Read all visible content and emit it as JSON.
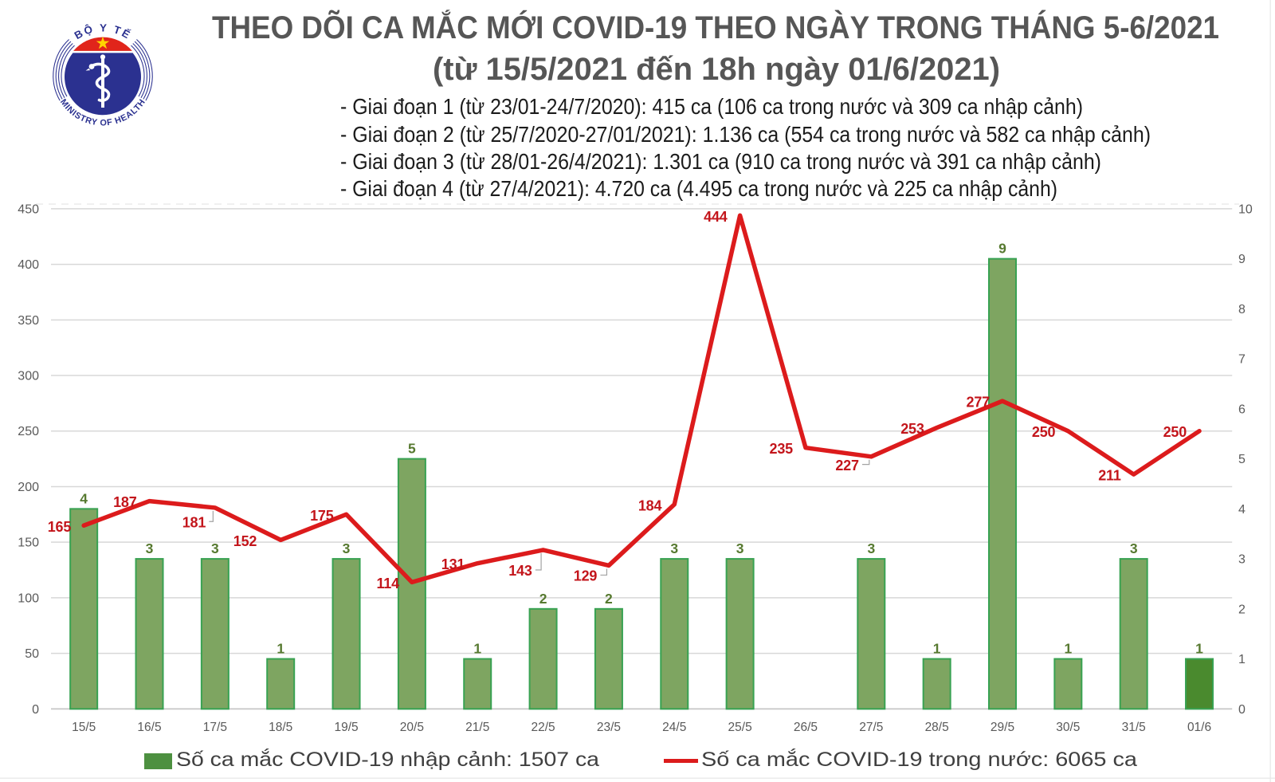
{
  "header": {
    "title_line1": "THEO DÕI CA MẮC MỚI COVID-19 THEO NGÀY TRONG THÁNG 5-6/2021",
    "title_line2": "(từ 15/5/2021 đến 18h ngày 01/6/2021)",
    "bullets": [
      "- Giai đoạn 1 (từ 23/01-24/7/2020): 415 ca (106 ca trong nước và 309 ca nhập cảnh)",
      "- Giai đoạn 2 (từ 25/7/2020-27/01/2021): 1.136 ca (554 ca trong nước và 582 ca nhập cảnh)",
      "- Giai đoạn 3 (từ 28/01-26/4/2021): 1.301 ca (910 ca trong nước và 391 ca nhập cảnh)",
      "- Giai đoạn 4 (từ 27/4/2021): 4.720 ca (4.495 ca trong nước và 225 ca nhập cảnh)"
    ],
    "logo": {
      "top_text": "BỘ Y TẾ",
      "bottom_text": "MINISTRY OF HEALTH"
    }
  },
  "chart_data": {
    "type": "combo-bar-line",
    "categories": [
      "15/5",
      "16/5",
      "17/5",
      "18/5",
      "19/5",
      "20/5",
      "21/5",
      "22/5",
      "23/5",
      "24/5",
      "25/5",
      "26/5",
      "27/5",
      "28/5",
      "29/5",
      "30/5",
      "31/5",
      "01/6"
    ],
    "series": [
      {
        "name": "Số ca mắc COVID-19 nhập cảnh",
        "type": "bar",
        "axis": "right",
        "values": [
          4,
          3,
          3,
          1,
          3,
          5,
          1,
          2,
          2,
          3,
          3,
          null,
          3,
          1,
          9,
          1,
          3,
          1
        ]
      },
      {
        "name": "Số ca mắc COVID-19 trong nước",
        "type": "line",
        "axis": "left",
        "values": [
          165,
          187,
          181,
          152,
          175,
          114,
          131,
          143,
          129,
          184,
          444,
          235,
          227,
          253,
          277,
          250,
          211,
          250
        ]
      }
    ],
    "left_axis": {
      "min": 0,
      "max": 450,
      "step": 50,
      "ticks": [
        "0",
        "50",
        "100",
        "150",
        "200",
        "250",
        "300",
        "350",
        "400",
        "450"
      ]
    },
    "right_axis": {
      "min": 0,
      "max": 10,
      "step": 1,
      "ticks": [
        "0",
        "1",
        "2",
        "3",
        "4",
        "5",
        "6",
        "7",
        "8",
        "9",
        "10"
      ]
    },
    "grid": "horizontal",
    "legend_position": "bottom",
    "colors": {
      "bar_fill": "#7EA561",
      "bar_fill_last": "#4A8A2E",
      "bar_stroke": "#38A252",
      "line": "#DC1B1C",
      "line_label": "#C3151B",
      "bar_label": "#56792F",
      "axis_text": "#595959",
      "grid": "#D8D8D8",
      "axis_line": "#C9C9C9",
      "leader": "#A3A3A3",
      "legend_swatch": "#4D9040",
      "frame": "#E9E9E9"
    },
    "line_label_layout": [
      {
        "mode": "left"
      },
      {
        "mode": "left"
      },
      {
        "mode": "below",
        "dx": -26.4,
        "dy": 18.3,
        "leader": true
      },
      {
        "mode": "left",
        "dx": -14
      },
      {
        "mode": "left"
      },
      {
        "mode": "left"
      },
      {
        "mode": "left"
      },
      {
        "mode": "below",
        "dx": -28.6,
        "dy": 26.1,
        "leader": true
      },
      {
        "mode": "below",
        "dx": -29.4,
        "dy": 13.0,
        "leader": true
      },
      {
        "mode": "left"
      },
      {
        "mode": "left"
      },
      {
        "mode": "left"
      },
      {
        "mode": "below",
        "dx": -30.2,
        "dy": 10.8,
        "leader": true
      },
      {
        "mode": "left"
      },
      {
        "mode": "left"
      },
      {
        "mode": "left"
      },
      {
        "mode": "left"
      },
      {
        "mode": "left"
      }
    ]
  },
  "legend": [
    {
      "label": "Số ca mắc COVID-19 nhập cảnh: 1507 ca",
      "swatch": "bar"
    },
    {
      "label": "Số ca mắc COVID-19 trong nước: 6065 ca",
      "swatch": "line"
    }
  ]
}
